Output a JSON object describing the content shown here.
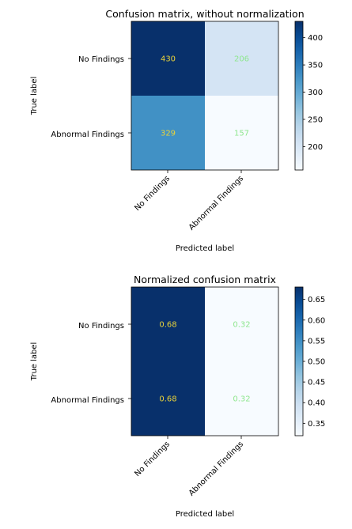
{
  "chart_data": [
    {
      "type": "heatmap",
      "title": "Confusion matrix, without normalization",
      "xlabel": "Predicted label",
      "ylabel": "True label",
      "x_categories": [
        "No Findings",
        "Abnormal Findings"
      ],
      "y_categories": [
        "No Findings",
        "Abnormal Findings"
      ],
      "values": [
        [
          430,
          206
        ],
        [
          329,
          157
        ]
      ],
      "cell_labels": [
        [
          "430",
          "206"
        ],
        [
          "329",
          "157"
        ]
      ],
      "colormap": "Blues",
      "colorbar": {
        "min": 157,
        "max": 430,
        "ticks": [
          "400",
          "350",
          "300",
          "250",
          "200"
        ],
        "tick_values": [
          400,
          350,
          300,
          250,
          200
        ]
      },
      "text_colors": {
        "dark": "#e8d23a",
        "light": "#8ee68e"
      }
    },
    {
      "type": "heatmap",
      "title": "Normalized confusion matrix",
      "xlabel": "Predicted label",
      "ylabel": "True label",
      "x_categories": [
        "No Findings",
        "Abnormal Findings"
      ],
      "y_categories": [
        "No Findings",
        "Abnormal Findings"
      ],
      "values": [
        [
          0.68,
          0.32
        ],
        [
          0.68,
          0.32
        ]
      ],
      "cell_labels": [
        [
          "0.68",
          "0.32"
        ],
        [
          "0.68",
          "0.32"
        ]
      ],
      "colormap": "Blues",
      "colorbar": {
        "min": 0.32,
        "max": 0.68,
        "ticks": [
          "0.65",
          "0.60",
          "0.55",
          "0.50",
          "0.45",
          "0.40",
          "0.35"
        ],
        "tick_values": [
          0.65,
          0.6,
          0.55,
          0.5,
          0.45,
          0.4,
          0.35
        ]
      },
      "text_colors": {
        "dark": "#e8d23a",
        "light": "#8ee68e"
      }
    }
  ]
}
